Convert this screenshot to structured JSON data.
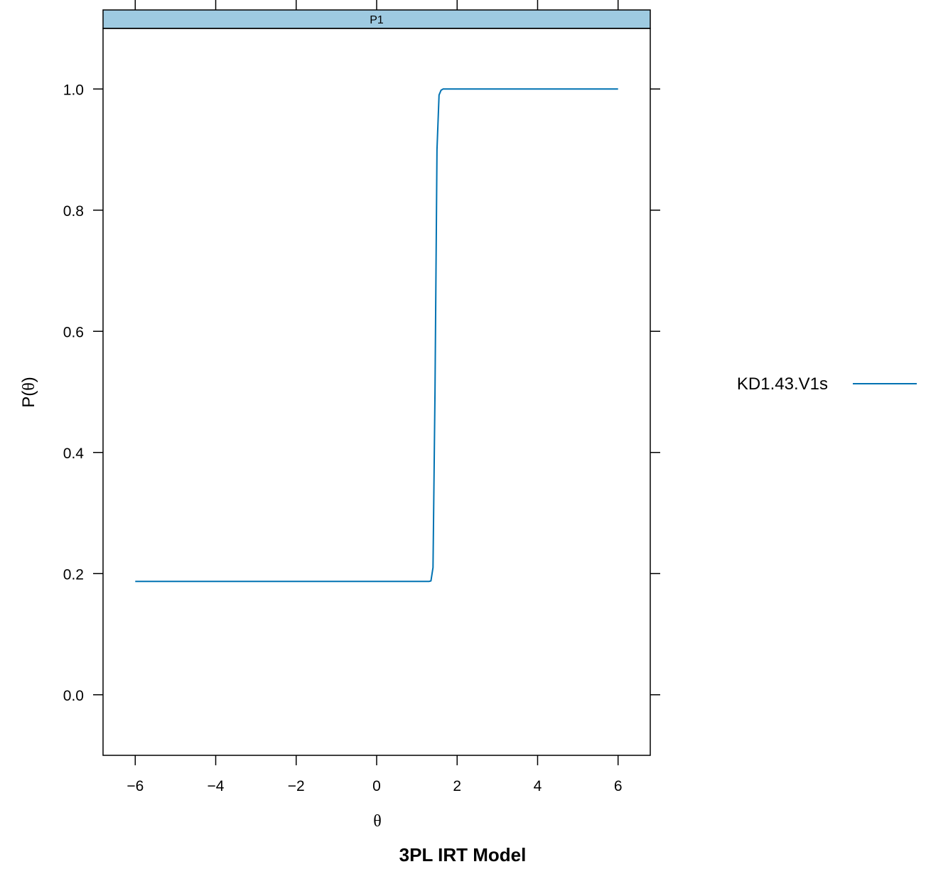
{
  "chart_data": {
    "type": "line",
    "caption": "3PL IRT Model",
    "panel_label": "P1",
    "xlabel_symbol": "θ",
    "ylabel_prefix": "P(",
    "ylabel_symbol": "θ",
    "ylabel_suffix": ")",
    "xlim": [
      -6.8,
      6.8
    ],
    "ylim": [
      -0.1,
      1.1
    ],
    "x_ticks": [
      -6,
      -4,
      -2,
      0,
      2,
      4,
      6
    ],
    "x_tick_labels": [
      "−6",
      "−4",
      "−2",
      "0",
      "2",
      "4",
      "6"
    ],
    "y_ticks": [
      0.0,
      0.2,
      0.4,
      0.6,
      0.8,
      1.0
    ],
    "y_tick_labels": [
      "0.0",
      "0.2",
      "0.4",
      "0.6",
      "0.8",
      "1.0"
    ],
    "grid": false,
    "legend_position": "right",
    "series": [
      {
        "name": "KD1.43.V1s",
        "color": "#0072B2",
        "x": [
          -6,
          -4,
          -2,
          0,
          1,
          1.3,
          1.35,
          1.4,
          1.45,
          1.5,
          1.55,
          1.6,
          1.65,
          1.7,
          2,
          4,
          6
        ],
        "y": [
          0.187,
          0.187,
          0.187,
          0.187,
          0.187,
          0.187,
          0.188,
          0.21,
          0.5,
          0.9,
          0.99,
          0.998,
          1.0,
          1.0,
          1.0,
          1.0,
          1.0
        ]
      }
    ]
  }
}
